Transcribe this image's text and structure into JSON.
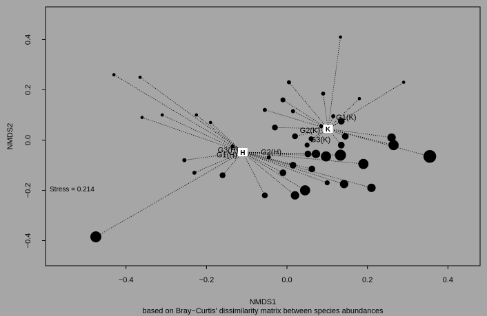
{
  "chart_data": {
    "type": "scatter",
    "xlabel": "NMDS1",
    "subtitle": "based on Bray−Curtis' dissimilarity matrix between species abundances",
    "ylabel": "NMDS2",
    "xlim": [
      -0.6,
      0.48
    ],
    "ylim": [
      -0.5,
      0.53
    ],
    "xticks": [
      -0.4,
      -0.2,
      0.0,
      0.2,
      0.4
    ],
    "xtick_labels": [
      "−0.4",
      "−0.2",
      "0.0",
      "0.2",
      "0.4"
    ],
    "yticks": [
      -0.4,
      -0.2,
      0.0,
      0.2,
      0.4
    ],
    "ytick_labels": [
      "−0.4",
      "−0.2",
      "0.0",
      "0.2",
      "0.4"
    ],
    "stress_label": "Stress = 0.214",
    "background": "#a6a6a6",
    "centroids": [
      {
        "label": "H",
        "x": -0.11,
        "y": -0.048
      },
      {
        "label": "K",
        "x": 0.102,
        "y": 0.045
      }
    ],
    "group_labels": [
      {
        "text": "G1(K)",
        "x": 0.122,
        "y": 0.092
      },
      {
        "text": "G2(K)",
        "x": 0.032,
        "y": 0.04
      },
      {
        "text": "G3(K)",
        "x": 0.058,
        "y": 0.002
      },
      {
        "text": "G2(H)",
        "x": -0.065,
        "y": -0.046
      },
      {
        "text": "G3(H)",
        "x": -0.172,
        "y": -0.039
      },
      {
        "text": "G1(H)",
        "x": -0.175,
        "y": -0.058
      }
    ],
    "points_H": [
      {
        "x": -0.43,
        "y": 0.26,
        "s": 1
      },
      {
        "x": -0.365,
        "y": 0.25,
        "s": 1
      },
      {
        "x": -0.36,
        "y": 0.09,
        "s": 1
      },
      {
        "x": -0.31,
        "y": 0.1,
        "s": 1
      },
      {
        "x": -0.225,
        "y": 0.1,
        "s": 1
      },
      {
        "x": -0.19,
        "y": 0.07,
        "s": 1
      },
      {
        "x": -0.255,
        "y": -0.08,
        "s": 1.5
      },
      {
        "x": -0.23,
        "y": -0.13,
        "s": 1.5
      },
      {
        "x": -0.16,
        "y": -0.14,
        "s": 2.5
      },
      {
        "x": -0.055,
        "y": -0.22,
        "s": 2.5
      },
      {
        "x": -0.045,
        "y": -0.068,
        "s": 1.5
      },
      {
        "x": -0.01,
        "y": -0.13,
        "s": 3
      },
      {
        "x": 0.015,
        "y": -0.1,
        "s": 3
      },
      {
        "x": 0.02,
        "y": -0.22,
        "s": 4
      },
      {
        "x": 0.045,
        "y": -0.2,
        "s": 5
      },
      {
        "x": 0.052,
        "y": -0.055,
        "s": 3
      },
      {
        "x": 0.062,
        "y": -0.115,
        "s": 3
      },
      {
        "x": 0.072,
        "y": -0.055,
        "s": 4
      },
      {
        "x": 0.1,
        "y": -0.17,
        "s": 2
      },
      {
        "x": 0.142,
        "y": -0.175,
        "s": 4
      },
      {
        "x": 0.21,
        "y": -0.19,
        "s": 4
      },
      {
        "x": 0.19,
        "y": -0.095,
        "s": 5
      },
      {
        "x": 0.133,
        "y": -0.06,
        "s": 5.5
      },
      {
        "x": 0.097,
        "y": -0.065,
        "s": 5
      },
      {
        "x": -0.135,
        "y": -0.025,
        "s": 1.5
      },
      {
        "x": -0.475,
        "y": -0.385,
        "s": 5.5
      }
    ],
    "points_K": [
      {
        "x": 0.133,
        "y": 0.41,
        "s": 1
      },
      {
        "x": 0.29,
        "y": 0.23,
        "s": 1
      },
      {
        "x": 0.18,
        "y": 0.165,
        "s": 1
      },
      {
        "x": 0.005,
        "y": 0.23,
        "s": 1.5
      },
      {
        "x": 0.09,
        "y": 0.185,
        "s": 1.5
      },
      {
        "x": -0.01,
        "y": 0.16,
        "s": 2
      },
      {
        "x": 0.015,
        "y": 0.115,
        "s": 1.5
      },
      {
        "x": -0.055,
        "y": 0.12,
        "s": 1.5
      },
      {
        "x": 0.115,
        "y": 0.095,
        "s": 1.5
      },
      {
        "x": 0.135,
        "y": 0.075,
        "s": 3
      },
      {
        "x": -0.03,
        "y": 0.05,
        "s": 2.5
      },
      {
        "x": 0.085,
        "y": 0.055,
        "s": 1.5
      },
      {
        "x": 0.02,
        "y": 0.015,
        "s": 2.5
      },
      {
        "x": 0.145,
        "y": 0.015,
        "s": 3
      },
      {
        "x": 0.06,
        "y": 0.005,
        "s": 2
      },
      {
        "x": 0.05,
        "y": -0.02,
        "s": 2
      },
      {
        "x": 0.135,
        "y": -0.02,
        "s": 3
      },
      {
        "x": 0.26,
        "y": 0.01,
        "s": 4
      },
      {
        "x": 0.265,
        "y": -0.02,
        "s": 5
      },
      {
        "x": 0.355,
        "y": -0.065,
        "s": 6.5
      }
    ]
  }
}
